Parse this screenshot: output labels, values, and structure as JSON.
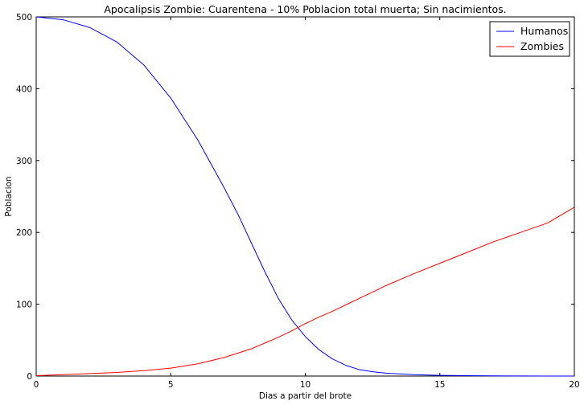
{
  "chart_data": {
    "type": "line",
    "title": "Apocalipsis Zombie: Cuarentena - 10% Poblacion total muerta; Sin nacimientos.",
    "xlabel": "Dias a partir del brote",
    "ylabel": "Poblacion",
    "xlim": [
      0,
      20
    ],
    "ylim": [
      0,
      500
    ],
    "xticks": [
      0,
      5,
      10,
      15,
      20
    ],
    "yticks": [
      0,
      100,
      200,
      300,
      400,
      500
    ],
    "xtick_labels": [
      "0",
      "5",
      "10",
      "15",
      "20"
    ],
    "ytick_labels": [
      "0",
      "100",
      "200",
      "300",
      "400",
      "500"
    ],
    "grid": false,
    "legend_position": "top-right",
    "x": [
      0,
      1,
      2,
      3,
      4,
      5,
      6,
      7,
      7.5,
      8,
      8.5,
      9,
      9.5,
      10,
      10.5,
      11,
      11.5,
      12,
      12.5,
      13,
      14,
      15,
      16,
      17,
      18,
      19,
      20
    ],
    "series": [
      {
        "name": "Humanos",
        "color": "#0000ff",
        "values": [
          500,
          496,
          485,
          465,
          433,
          387,
          329,
          261,
          225,
          185,
          145,
          108,
          78,
          55,
          37,
          24,
          15,
          9,
          6,
          4,
          2,
          1,
          0.5,
          0.3,
          0.1,
          0.05,
          0
        ]
      },
      {
        "name": "Zombies",
        "color": "#ff0000",
        "values": [
          0.5,
          2,
          3.5,
          5,
          7.5,
          11,
          17,
          26,
          32,
          38,
          46,
          54,
          63,
          73,
          82,
          90,
          99,
          108,
          117,
          126,
          142,
          157,
          172,
          187,
          200,
          213,
          235
        ]
      }
    ]
  }
}
